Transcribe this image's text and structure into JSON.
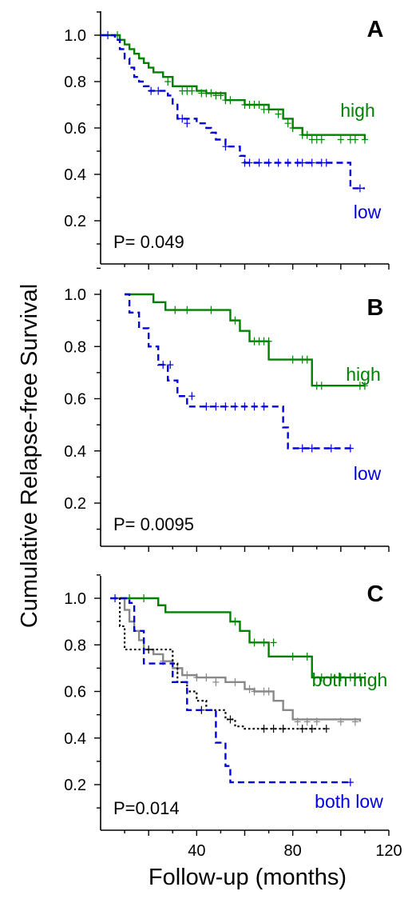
{
  "chart_data": [
    {
      "type": "line",
      "panel_label": "A",
      "annotation": "P= 0.049",
      "x_ticks": [],
      "y_ticks": [
        "1.0",
        "0.8",
        "0.6",
        "0.4",
        "0.2"
      ],
      "xlim": [
        0,
        120
      ],
      "ylim": [
        0.1,
        1.1
      ],
      "series": [
        {
          "name": "high",
          "color": "#008000",
          "style": "solid",
          "x": [
            0,
            6,
            8,
            10,
            12,
            14,
            16,
            18,
            20,
            22,
            26,
            30,
            40,
            44,
            52,
            60,
            70,
            76,
            80,
            84,
            110
          ],
          "y": [
            1.0,
            1.0,
            0.98,
            0.96,
            0.94,
            0.92,
            0.9,
            0.88,
            0.86,
            0.84,
            0.82,
            0.78,
            0.76,
            0.75,
            0.72,
            0.7,
            0.68,
            0.64,
            0.6,
            0.57,
            0.55
          ],
          "censored_x": [
            7,
            28,
            34,
            36,
            38,
            42,
            44,
            46,
            48,
            50,
            52,
            54,
            60,
            62,
            64,
            66,
            68,
            70,
            74,
            78,
            80,
            84,
            86,
            88,
            90,
            92,
            100,
            104,
            106,
            110
          ],
          "censored_y": [
            1.0,
            0.8,
            0.76,
            0.76,
            0.76,
            0.75,
            0.75,
            0.75,
            0.74,
            0.74,
            0.72,
            0.72,
            0.7,
            0.7,
            0.7,
            0.7,
            0.68,
            0.68,
            0.66,
            0.62,
            0.6,
            0.57,
            0.57,
            0.55,
            0.55,
            0.55,
            0.55,
            0.55,
            0.55,
            0.55
          ]
        },
        {
          "name": "low",
          "color": "#0000dd",
          "style": "dashed",
          "x": [
            0,
            6,
            8,
            10,
            12,
            14,
            16,
            18,
            20,
            28,
            30,
            32,
            40,
            44,
            46,
            48,
            52,
            58,
            60,
            104,
            110
          ],
          "y": [
            1.0,
            0.98,
            0.94,
            0.9,
            0.86,
            0.82,
            0.8,
            0.78,
            0.76,
            0.74,
            0.7,
            0.64,
            0.62,
            0.6,
            0.58,
            0.55,
            0.52,
            0.48,
            0.45,
            0.34,
            0.34
          ],
          "censored_x": [
            3,
            21,
            24,
            34,
            36,
            52,
            60,
            62,
            66,
            70,
            74,
            78,
            82,
            84,
            88,
            92,
            94,
            108
          ],
          "censored_y": [
            1.0,
            0.76,
            0.76,
            0.64,
            0.62,
            0.52,
            0.45,
            0.45,
            0.45,
            0.45,
            0.45,
            0.45,
            0.45,
            0.45,
            0.45,
            0.45,
            0.45,
            0.34
          ]
        }
      ]
    },
    {
      "type": "line",
      "panel_label": "B",
      "annotation": "P= 0.0095",
      "x_ticks": [],
      "y_ticks": [
        "1.0",
        "0.8",
        "0.6",
        "0.4",
        "0.2"
      ],
      "xlim": [
        0,
        120
      ],
      "ylim": [
        0.1,
        1.1
      ],
      "series": [
        {
          "name": "high",
          "color": "#008000",
          "style": "solid",
          "x": [
            10,
            22,
            27,
            54,
            58,
            62,
            70,
            88,
            110
          ],
          "y": [
            1.0,
            0.97,
            0.94,
            0.9,
            0.86,
            0.82,
            0.75,
            0.65,
            0.65
          ],
          "censored_x": [
            31,
            36,
            46,
            56,
            64,
            66,
            68,
            70,
            80,
            84,
            86,
            90,
            92,
            108,
            110
          ],
          "censored_y": [
            0.94,
            0.94,
            0.94,
            0.9,
            0.82,
            0.82,
            0.82,
            0.82,
            0.75,
            0.75,
            0.75,
            0.65,
            0.65,
            0.65,
            0.65
          ]
        },
        {
          "name": "low",
          "color": "#0000dd",
          "style": "dashed",
          "x": [
            10,
            12,
            16,
            20,
            24,
            28,
            32,
            36,
            42,
            76,
            78,
            104
          ],
          "y": [
            1.0,
            0.93,
            0.87,
            0.8,
            0.73,
            0.67,
            0.61,
            0.57,
            0.57,
            0.49,
            0.41,
            0.41
          ],
          "censored_x": [
            26,
            29,
            38,
            44,
            48,
            52,
            56,
            60,
            64,
            68,
            84,
            88,
            96,
            104
          ],
          "censored_y": [
            0.73,
            0.73,
            0.61,
            0.57,
            0.57,
            0.57,
            0.57,
            0.57,
            0.57,
            0.57,
            0.41,
            0.41,
            0.41,
            0.41
          ]
        }
      ]
    },
    {
      "type": "line",
      "panel_label": "C",
      "annotation": "P=0.014",
      "x_ticks": [
        "40",
        "80",
        "120"
      ],
      "y_ticks": [
        "1.0",
        "0.8",
        "0.6",
        "0.4",
        "0.2"
      ],
      "xlim": [
        0,
        120
      ],
      "ylim": [
        0.1,
        1.1
      ],
      "series": [
        {
          "name": "both high",
          "color": "#008000",
          "style": "solid",
          "x": [
            8,
            24,
            27,
            54,
            58,
            62,
            70,
            88,
            110
          ],
          "y": [
            1.0,
            0.97,
            0.94,
            0.9,
            0.86,
            0.81,
            0.75,
            0.66,
            0.66
          ],
          "censored_x": [
            12,
            18,
            56,
            64,
            68,
            72,
            80,
            86,
            92,
            96,
            100,
            104,
            108
          ],
          "censored_y": [
            1.0,
            1.0,
            0.9,
            0.81,
            0.81,
            0.81,
            0.75,
            0.75,
            0.66,
            0.66,
            0.66,
            0.66,
            0.66
          ]
        },
        {
          "name": "",
          "color": "#888888",
          "style": "solid",
          "x": [
            6,
            10,
            12,
            14,
            16,
            18,
            22,
            26,
            30,
            34,
            40,
            52,
            60,
            64,
            72,
            76,
            80,
            108
          ],
          "y": [
            1.0,
            0.95,
            0.9,
            0.86,
            0.82,
            0.78,
            0.76,
            0.73,
            0.7,
            0.67,
            0.66,
            0.64,
            0.61,
            0.6,
            0.56,
            0.52,
            0.48,
            0.47
          ],
          "censored_x": [
            26,
            32,
            36,
            40,
            44,
            48,
            56,
            62,
            64,
            68,
            70,
            82,
            86,
            90,
            100,
            106
          ],
          "censored_y": [
            0.73,
            0.7,
            0.67,
            0.66,
            0.66,
            0.64,
            0.64,
            0.61,
            0.6,
            0.6,
            0.6,
            0.47,
            0.47,
            0.47,
            0.47,
            0.47
          ]
        },
        {
          "name": "",
          "color": "#000000",
          "style": "dotted",
          "x": [
            6,
            8,
            10,
            30,
            32,
            36,
            40,
            44,
            52,
            56,
            60,
            94
          ],
          "y": [
            1.0,
            0.88,
            0.78,
            0.72,
            0.64,
            0.6,
            0.56,
            0.52,
            0.48,
            0.45,
            0.44,
            0.44
          ],
          "censored_x": [
            20,
            42,
            54,
            68,
            72,
            76,
            84,
            88,
            94
          ],
          "censored_y": [
            0.78,
            0.52,
            0.48,
            0.44,
            0.44,
            0.44,
            0.44,
            0.44,
            0.44
          ]
        },
        {
          "name": "both low",
          "color": "#0000dd",
          "style": "dashed",
          "x": [
            4,
            12,
            14,
            18,
            30,
            36,
            48,
            52,
            54,
            104
          ],
          "y": [
            1.0,
            0.98,
            0.86,
            0.72,
            0.64,
            0.52,
            0.38,
            0.28,
            0.21,
            0.21
          ],
          "censored_x": [
            6,
            104
          ],
          "censored_y": [
            1.0,
            0.21
          ]
        }
      ]
    }
  ],
  "labels": {
    "ylabel": "Cumulative Relapse-free Survival",
    "xlabel": "Follow-up (months)"
  }
}
